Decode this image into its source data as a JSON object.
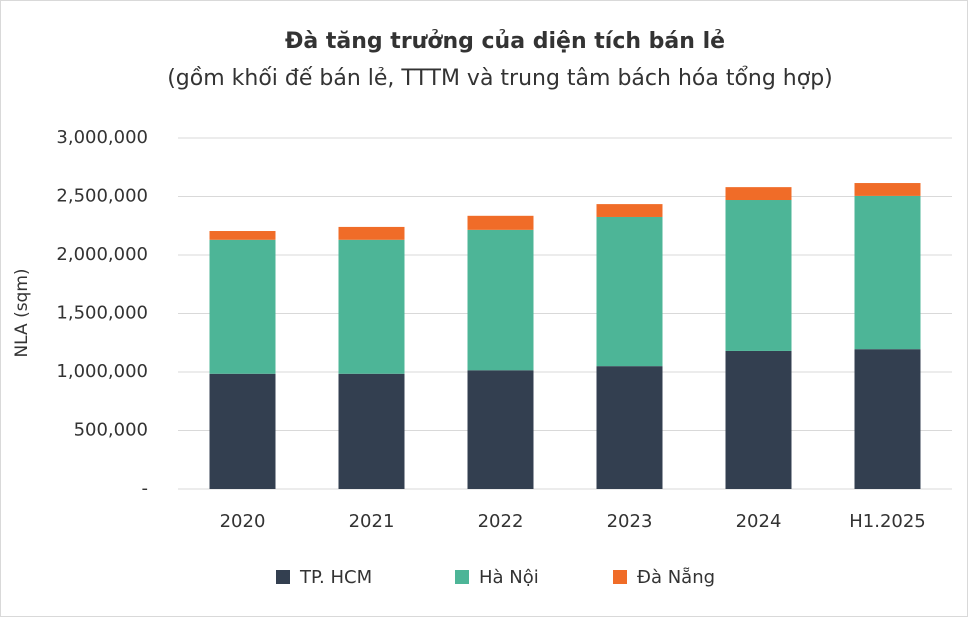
{
  "chart_data": {
    "type": "stacked_bar",
    "title": "Đà tăng trưởng của diện tích bán lẻ",
    "subtitle": "(gồm khối đế bán lẻ, TTTM và trung tâm bách hóa tổng hợp)",
    "y_label": "NLA (sqm)",
    "categories": [
      "2020",
      "2021",
      "2022",
      "2023",
      "2024",
      "H1.2025"
    ],
    "series": [
      {
        "name": "TP. HCM",
        "color": "#333f50",
        "values": [
          985000,
          985000,
          1015000,
          1050000,
          1180000,
          1195000
        ]
      },
      {
        "name": "Hà Nội",
        "color": "#4db597",
        "values": [
          1145000,
          1145000,
          1200000,
          1275000,
          1290000,
          1310000
        ]
      },
      {
        "name": "Đà Nẵng",
        "color": "#f06c28",
        "values": [
          75000,
          110000,
          120000,
          110000,
          110000,
          110000
        ]
      }
    ],
    "ylim": [
      0,
      3000000
    ],
    "yticks": [
      {
        "value": 0,
        "label": "-"
      },
      {
        "value": 500000,
        "label": "500,000"
      },
      {
        "value": 1000000,
        "label": "1,000,000"
      },
      {
        "value": 1500000,
        "label": "1,500,000"
      },
      {
        "value": 2000000,
        "label": "2,000,000"
      },
      {
        "value": 2500000,
        "label": "2,500,000"
      },
      {
        "value": 3000000,
        "label": "3,000,000"
      }
    ],
    "grid": true,
    "legend": "bottom"
  }
}
